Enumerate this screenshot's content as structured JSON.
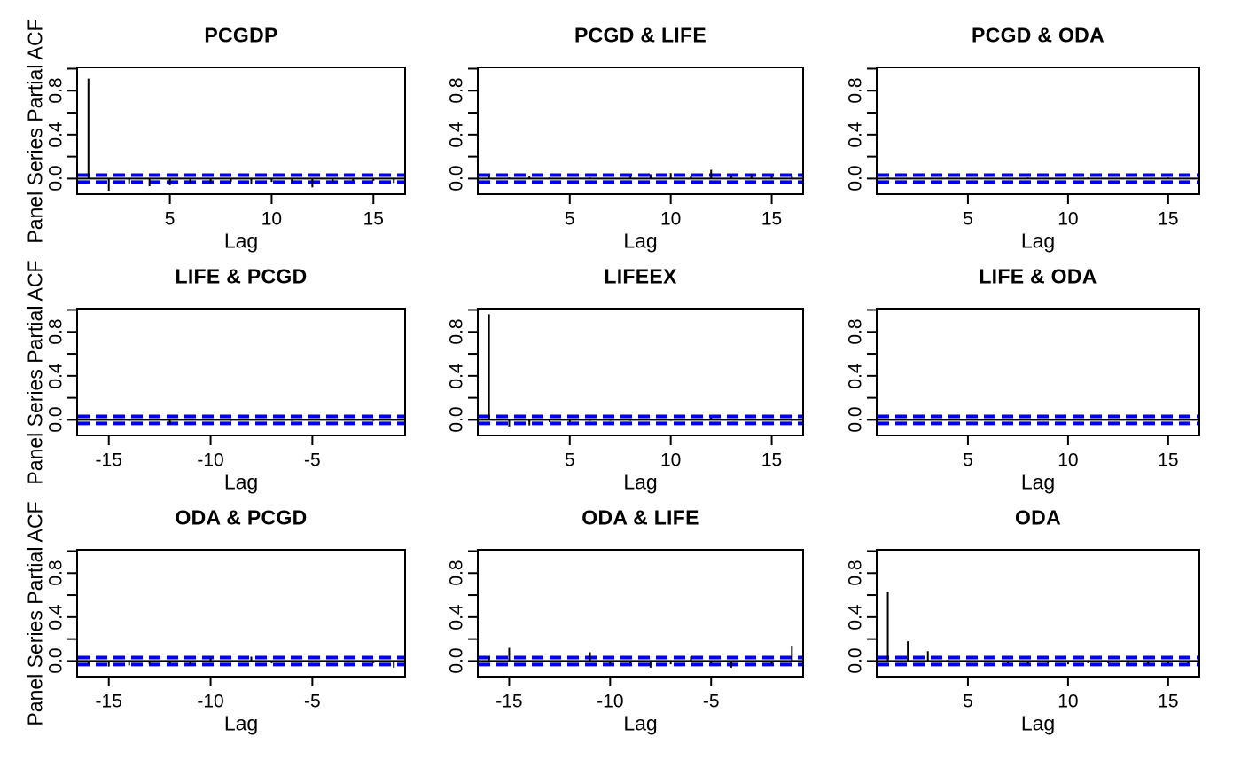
{
  "figure": {
    "xlabel": "Lag",
    "ylabel": "Panel Series Partial ACF",
    "grid": {
      "rows": 3,
      "cols": 3
    },
    "variables": [
      "PCGDP",
      "LIFEEX",
      "ODA"
    ],
    "colors": {
      "spike": "#000000",
      "box": "#000000",
      "text": "#000000",
      "confidence_band": "#0000EE",
      "background": "#FFFFFF"
    }
  },
  "chart_data": [
    {
      "type": "bar",
      "style": "acf-spikes",
      "title": "PCGDP",
      "x": [
        1,
        2,
        3,
        4,
        5,
        6,
        7,
        8,
        9,
        10,
        11,
        12,
        13,
        14,
        15,
        16
      ],
      "values": [
        0.91,
        -0.11,
        -0.05,
        -0.07,
        -0.06,
        -0.04,
        -0.04,
        -0.03,
        -0.05,
        -0.03,
        -0.03,
        -0.08,
        -0.03,
        -0.02,
        -0.02,
        -0.04
      ],
      "conf_band": 0.032,
      "xlim": [
        0.4,
        16.6
      ],
      "ylim": [
        -0.15,
        1.02
      ],
      "x_ticks": [
        5,
        10,
        15
      ],
      "x_tick_labels": [
        "5",
        "10",
        "15"
      ],
      "y_ticks": [
        0,
        0.2,
        0.4,
        0.6,
        0.8,
        1.0
      ],
      "y_tick_labels": [
        "0.0",
        "",
        "0.4",
        "",
        "0.8",
        ""
      ],
      "xlabel": "Lag",
      "grid_lines": false
    },
    {
      "type": "bar",
      "style": "acf-spikes",
      "title": "PCGD & LIFE",
      "x": [
        1,
        2,
        3,
        4,
        5,
        6,
        7,
        8,
        9,
        10,
        11,
        12,
        13,
        14,
        15,
        16
      ],
      "values": [
        0.03,
        0.01,
        0.02,
        0.01,
        0.0,
        0.01,
        0.0,
        0.02,
        0.04,
        0.05,
        0.02,
        0.08,
        0.03,
        0.04,
        0.02,
        0.03
      ],
      "conf_band": 0.032,
      "xlim": [
        0.4,
        16.6
      ],
      "ylim": [
        -0.15,
        1.02
      ],
      "x_ticks": [
        5,
        10,
        15
      ],
      "x_tick_labels": [
        "5",
        "10",
        "15"
      ],
      "y_ticks": [
        0,
        0.2,
        0.4,
        0.6,
        0.8,
        1.0
      ],
      "y_tick_labels": [
        "0.0",
        "",
        "0.4",
        "",
        "0.8",
        ""
      ],
      "xlabel": "Lag",
      "grid_lines": false
    },
    {
      "type": "bar",
      "style": "acf-spikes",
      "title": "PCGD & ODA",
      "x": [
        1,
        2,
        3,
        4,
        5,
        6,
        7,
        8,
        9,
        10,
        11,
        12,
        13,
        14,
        15,
        16
      ],
      "values": [
        0.01,
        0.0,
        0.0,
        0.01,
        0.0,
        0.0,
        0.0,
        0.01,
        0.0,
        0.0,
        0.01,
        0.0,
        0.0,
        0.0,
        0.01,
        0.0
      ],
      "conf_band": 0.032,
      "xlim": [
        0.4,
        16.6
      ],
      "ylim": [
        -0.15,
        1.02
      ],
      "x_ticks": [
        5,
        10,
        15
      ],
      "x_tick_labels": [
        "5",
        "10",
        "15"
      ],
      "y_ticks": [
        0,
        0.2,
        0.4,
        0.6,
        0.8,
        1.0
      ],
      "y_tick_labels": [
        "0.0",
        "",
        "0.4",
        "",
        "0.8",
        ""
      ],
      "xlabel": "Lag",
      "grid_lines": false
    },
    {
      "type": "bar",
      "style": "acf-spikes",
      "title": "LIFE & PCGD",
      "x": [
        -16,
        -15,
        -14,
        -13,
        -12,
        -11,
        -10,
        -9,
        -8,
        -7,
        -6,
        -5,
        -4,
        -3,
        -2,
        -1
      ],
      "values": [
        0.0,
        0.01,
        -0.01,
        0.0,
        -0.04,
        0.01,
        0.0,
        -0.01,
        0.01,
        0.0,
        -0.01,
        0.01,
        0.0,
        0.01,
        -0.01,
        0.01
      ],
      "conf_band": 0.032,
      "xlim": [
        -16.6,
        -0.4
      ],
      "ylim": [
        -0.15,
        1.02
      ],
      "x_ticks": [
        -15,
        -10,
        -5
      ],
      "x_tick_labels": [
        "-15",
        "-10",
        "-5"
      ],
      "y_ticks": [
        0,
        0.2,
        0.4,
        0.6,
        0.8,
        1.0
      ],
      "y_tick_labels": [
        "0.0",
        "",
        "0.4",
        "",
        "0.8",
        ""
      ],
      "xlabel": "Lag",
      "grid_lines": false
    },
    {
      "type": "bar",
      "style": "acf-spikes",
      "title": "LIFEEX",
      "x": [
        1,
        2,
        3,
        4,
        5,
        6,
        7,
        8,
        9,
        10,
        11,
        12,
        13,
        14,
        15,
        16
      ],
      "values": [
        0.96,
        -0.06,
        -0.05,
        -0.02,
        -0.02,
        -0.01,
        -0.01,
        -0.01,
        0.0,
        -0.01,
        0.0,
        0.02,
        0.01,
        0.0,
        0.0,
        -0.01
      ],
      "conf_band": 0.032,
      "xlim": [
        0.4,
        16.6
      ],
      "ylim": [
        -0.15,
        1.02
      ],
      "x_ticks": [
        5,
        10,
        15
      ],
      "x_tick_labels": [
        "5",
        "10",
        "15"
      ],
      "y_ticks": [
        0,
        0.2,
        0.4,
        0.6,
        0.8,
        1.0
      ],
      "y_tick_labels": [
        "0.0",
        "",
        "0.4",
        "",
        "0.8",
        ""
      ],
      "xlabel": "Lag",
      "grid_lines": false
    },
    {
      "type": "bar",
      "style": "acf-spikes",
      "title": "LIFE & ODA",
      "x": [
        1,
        2,
        3,
        4,
        5,
        6,
        7,
        8,
        9,
        10,
        11,
        12,
        13,
        14,
        15,
        16
      ],
      "values": [
        0.0,
        0.01,
        0.0,
        0.0,
        0.01,
        0.0,
        0.0,
        0.0,
        0.01,
        0.0,
        0.0,
        0.01,
        0.0,
        0.0,
        0.0,
        0.01
      ],
      "conf_band": 0.032,
      "xlim": [
        0.4,
        16.6
      ],
      "ylim": [
        -0.15,
        1.02
      ],
      "x_ticks": [
        5,
        10,
        15
      ],
      "x_tick_labels": [
        "5",
        "10",
        "15"
      ],
      "y_ticks": [
        0,
        0.2,
        0.4,
        0.6,
        0.8,
        1.0
      ],
      "y_tick_labels": [
        "0.0",
        "",
        "0.4",
        "",
        "0.8",
        ""
      ],
      "xlabel": "Lag",
      "grid_lines": false
    },
    {
      "type": "bar",
      "style": "acf-spikes",
      "title": "ODA & PCGD",
      "x": [
        -16,
        -15,
        -14,
        -13,
        -12,
        -11,
        -10,
        -9,
        -8,
        -7,
        -6,
        -5,
        -4,
        -3,
        -2,
        -1
      ],
      "values": [
        -0.03,
        -0.05,
        -0.04,
        -0.03,
        -0.02,
        -0.03,
        0.03,
        -0.01,
        0.04,
        -0.02,
        -0.01,
        -0.01,
        -0.01,
        -0.01,
        -0.02,
        -0.06
      ],
      "conf_band": 0.032,
      "xlim": [
        -16.6,
        -0.4
      ],
      "ylim": [
        -0.15,
        1.02
      ],
      "x_ticks": [
        -15,
        -10,
        -5
      ],
      "x_tick_labels": [
        "-15",
        "-10",
        "-5"
      ],
      "y_ticks": [
        0,
        0.2,
        0.4,
        0.6,
        0.8,
        1.0
      ],
      "y_tick_labels": [
        "0.0",
        "",
        "0.4",
        "",
        "0.8",
        ""
      ],
      "xlabel": "Lag",
      "grid_lines": false
    },
    {
      "type": "bar",
      "style": "acf-spikes",
      "title": "ODA & LIFE",
      "x": [
        -16,
        -15,
        -14,
        -13,
        -12,
        -11,
        -10,
        -9,
        -8,
        -7,
        -6,
        -5,
        -4,
        -3,
        -2,
        -1
      ],
      "values": [
        0.04,
        0.12,
        0.0,
        0.0,
        0.0,
        0.08,
        -0.03,
        -0.02,
        -0.06,
        -0.03,
        0.04,
        -0.02,
        -0.06,
        -0.01,
        -0.03,
        0.14
      ],
      "conf_band": 0.032,
      "xlim": [
        -16.6,
        -0.4
      ],
      "ylim": [
        -0.15,
        1.02
      ],
      "x_ticks": [
        -15,
        -10,
        -5
      ],
      "x_tick_labels": [
        "-15",
        "-10",
        "-5"
      ],
      "y_ticks": [
        0,
        0.2,
        0.4,
        0.6,
        0.8,
        1.0
      ],
      "y_tick_labels": [
        "0.0",
        "",
        "0.4",
        "",
        "0.8",
        ""
      ],
      "xlabel": "Lag",
      "grid_lines": false
    },
    {
      "type": "bar",
      "style": "acf-spikes",
      "title": "ODA",
      "x": [
        1,
        2,
        3,
        4,
        5,
        6,
        7,
        8,
        9,
        10,
        11,
        12,
        13,
        14,
        15,
        16
      ],
      "values": [
        0.63,
        0.18,
        0.09,
        0.01,
        -0.01,
        -0.01,
        -0.02,
        -0.03,
        -0.02,
        -0.03,
        -0.02,
        -0.02,
        -0.03,
        -0.03,
        -0.02,
        -0.02
      ],
      "conf_band": 0.032,
      "xlim": [
        0.4,
        16.6
      ],
      "ylim": [
        -0.15,
        1.02
      ],
      "x_ticks": [
        5,
        10,
        15
      ],
      "x_tick_labels": [
        "5",
        "10",
        "15"
      ],
      "y_ticks": [
        0,
        0.2,
        0.4,
        0.6,
        0.8,
        1.0
      ],
      "y_tick_labels": [
        "0.0",
        "",
        "0.4",
        "",
        "0.8",
        ""
      ],
      "xlabel": "Lag",
      "grid_lines": false
    }
  ]
}
